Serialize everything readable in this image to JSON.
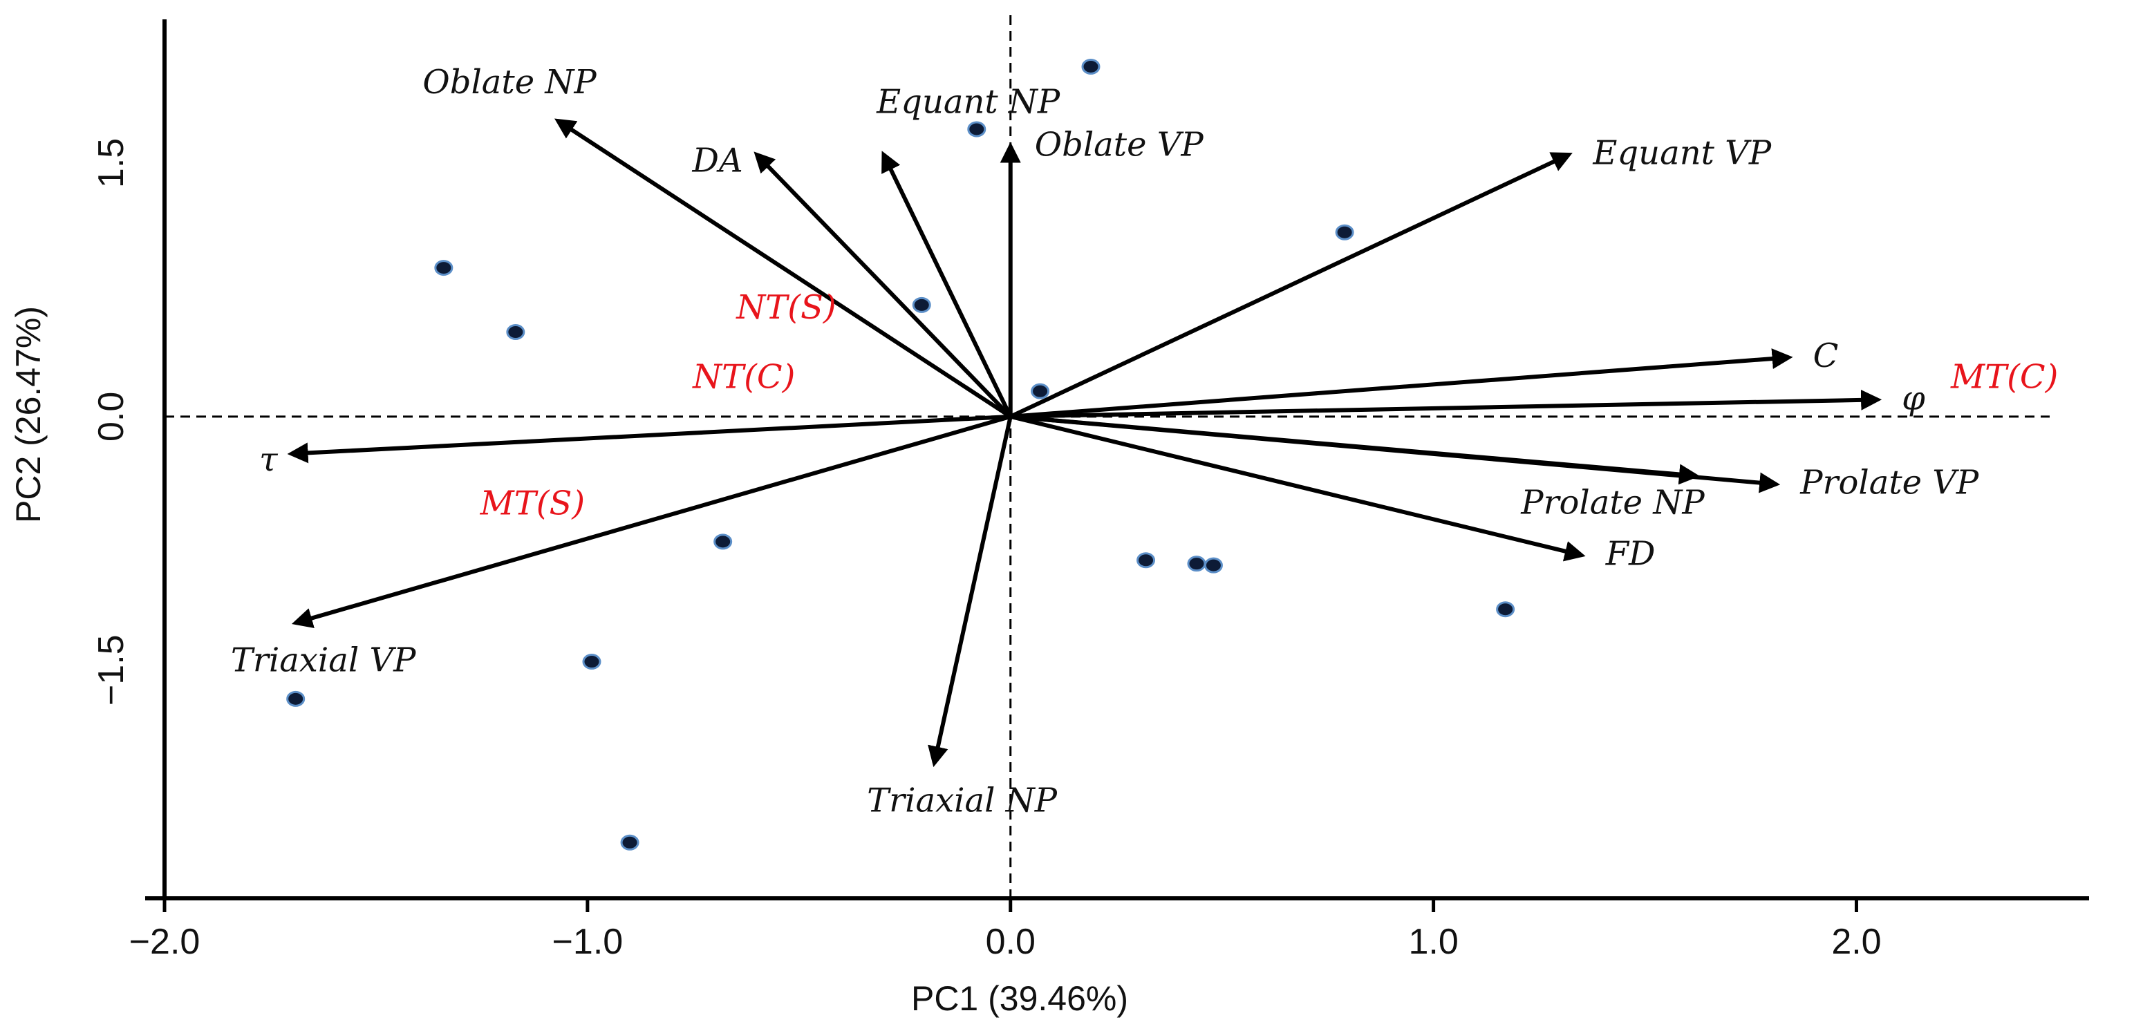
{
  "chart_data": {
    "type": "biplot",
    "title": "",
    "xlabel": "PC1 (39.46%)",
    "ylabel": "PC2 (26.47%)",
    "xlim": [
      -2.0,
      2.55
    ],
    "ylim": [
      -2.85,
      2.35
    ],
    "xticks": [
      {
        "value": -2.0,
        "label": "−2.0"
      },
      {
        "value": -1.0,
        "label": "−1.0"
      },
      {
        "value": 0.0,
        "label": "0.0"
      },
      {
        "value": 1.0,
        "label": "1.0"
      },
      {
        "value": 2.0,
        "label": "2.0"
      }
    ],
    "yticks": [
      {
        "value": -1.5,
        "label": "−1.5"
      },
      {
        "value": 0.0,
        "label": "0.0"
      },
      {
        "value": 1.5,
        "label": "1.5"
      }
    ],
    "loadings": [
      {
        "name": "Oblate NP",
        "x": -1.07,
        "y": 1.75,
        "label_pos": "top"
      },
      {
        "name": "DA",
        "x": -0.6,
        "y": 1.55,
        "label_pos": "left"
      },
      {
        "name": "Equant NP",
        "x": -0.3,
        "y": 1.55,
        "label_pos": "top-right"
      },
      {
        "name": "Oblate VP",
        "x": 0.0,
        "y": 1.6,
        "label_pos": "right"
      },
      {
        "name": "Equant VP",
        "x": 1.32,
        "y": 1.55,
        "label_pos": "right"
      },
      {
        "name": "C",
        "x": 1.84,
        "y": 0.35,
        "label_pos": "right"
      },
      {
        "name": "φ",
        "x": 2.05,
        "y": 0.1,
        "label_pos": "right"
      },
      {
        "name": "Prolate NP",
        "x": 1.62,
        "y": -0.35,
        "label_pos": "bottom-left"
      },
      {
        "name": "Prolate VP",
        "x": 1.81,
        "y": -0.4,
        "label_pos": "right"
      },
      {
        "name": "FD",
        "x": 1.35,
        "y": -0.82,
        "label_pos": "right"
      },
      {
        "name": "Triaxial NP",
        "x": -0.18,
        "y": -2.05,
        "label_pos": "bottom"
      },
      {
        "name": "Triaxial VP",
        "x": -1.69,
        "y": -1.22,
        "label_pos": "bottom"
      },
      {
        "name": "τ",
        "x": -1.7,
        "y": -0.22,
        "label_pos": "left"
      }
    ],
    "scores": [
      {
        "x": 0.19,
        "y": 2.07
      },
      {
        "x": -0.08,
        "y": 1.7
      },
      {
        "x": 0.79,
        "y": 1.09
      },
      {
        "x": -1.34,
        "y": 0.88
      },
      {
        "x": -1.17,
        "y": 0.5
      },
      {
        "x": -0.21,
        "y": 0.66
      },
      {
        "x": 0.07,
        "y": 0.15
      },
      {
        "x": -0.68,
        "y": -0.74
      },
      {
        "x": 0.32,
        "y": -0.85
      },
      {
        "x": 0.44,
        "y": -0.87
      },
      {
        "x": 0.48,
        "y": -0.88
      },
      {
        "x": 1.17,
        "y": -1.14
      },
      {
        "x": -0.99,
        "y": -1.45
      },
      {
        "x": -1.69,
        "y": -1.67
      },
      {
        "x": -0.9,
        "y": -2.52
      }
    ],
    "group_labels": [
      {
        "text": "NT(S)",
        "x": -0.53,
        "y": 0.58
      },
      {
        "text": "NT(C)",
        "x": -0.63,
        "y": 0.17
      },
      {
        "text": "MT(C)",
        "x": 2.35,
        "y": 0.17
      },
      {
        "text": "MT(S)",
        "x": -1.13,
        "y": -0.58
      }
    ],
    "colors": {
      "arrow": "#000000",
      "point_fill": "#0d1b36",
      "point_stroke": "#5c8fc8",
      "group_label": "#e8141b",
      "axis": "#000000"
    }
  }
}
